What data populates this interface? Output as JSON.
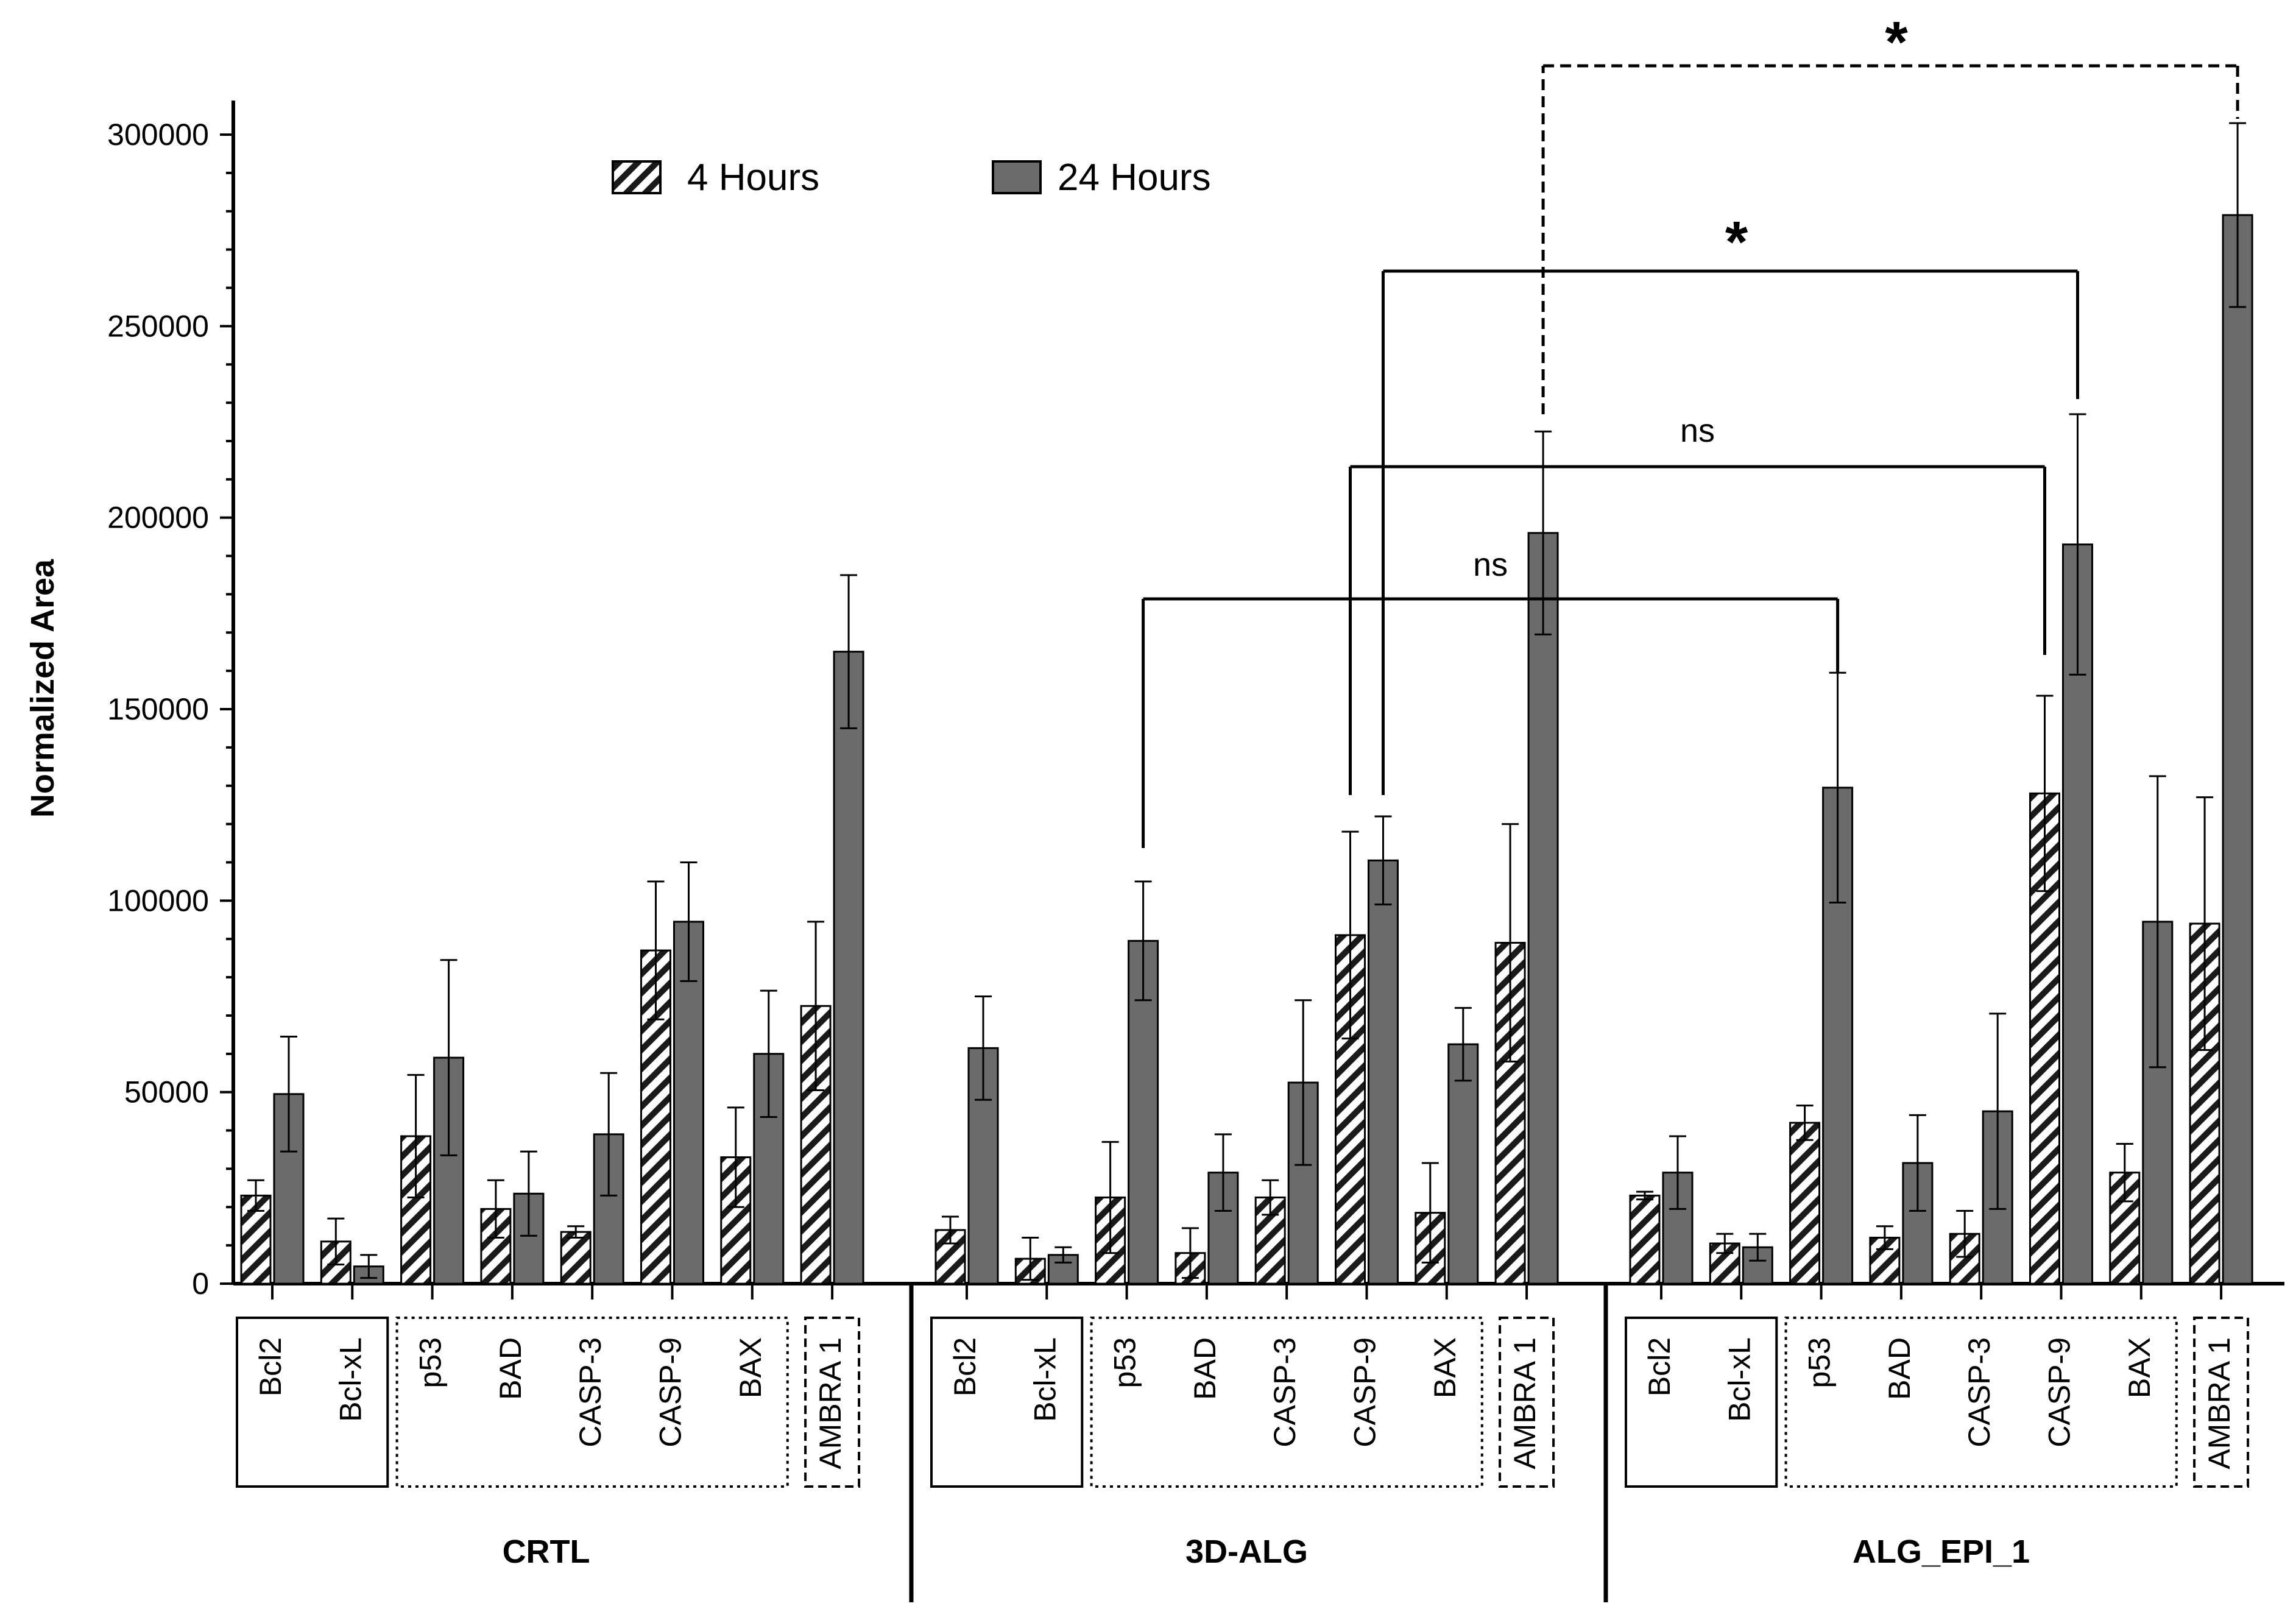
{
  "chart_data": {
    "type": "bar",
    "ylabel": "Normalized Area",
    "ylim": [
      0,
      300000
    ],
    "yticks": [
      0,
      50000,
      100000,
      150000,
      200000,
      250000,
      300000
    ],
    "grid": false,
    "legend_position": "top-center",
    "series": [
      {
        "name": "4 Hours",
        "pattern": "hatched"
      },
      {
        "name": "24 Hours",
        "color": "#6b6b6b"
      }
    ],
    "genes": [
      "Bcl2",
      "Bcl-xL",
      "p53",
      "BAD",
      "CASP-3",
      "CASP-9",
      "BAX",
      "AMBRA 1"
    ],
    "gene_groups": [
      {
        "genes": [
          "Bcl2",
          "Bcl-xL"
        ],
        "border": "solid"
      },
      {
        "genes": [
          "p53",
          "BAD",
          "CASP-3",
          "CASP-9",
          "BAX"
        ],
        "border": "dotted"
      },
      {
        "genes": [
          "AMBRA 1"
        ],
        "border": "dashed"
      }
    ],
    "groups": [
      {
        "name": "CRTL",
        "h4": [
          23000,
          11000,
          38500,
          19500,
          13500,
          87000,
          33000,
          72500
        ],
        "h4_err": [
          4000,
          6000,
          16000,
          7500,
          1500,
          18000,
          13000,
          22000
        ],
        "h24": [
          49500,
          4500,
          59000,
          23500,
          39000,
          94500,
          60000,
          165000
        ],
        "h24_err": [
          15000,
          3000,
          25500,
          11000,
          16000,
          15500,
          16500,
          20000
        ]
      },
      {
        "name": "3D-ALG",
        "h4": [
          14000,
          6500,
          22500,
          8000,
          22500,
          91000,
          18500,
          89000
        ],
        "h4_err": [
          3500,
          5500,
          14500,
          6500,
          4500,
          27000,
          13000,
          31000
        ],
        "h24": [
          61500,
          7500,
          89500,
          29000,
          52500,
          110500,
          62500,
          196000
        ],
        "h24_err": [
          13500,
          2000,
          15500,
          10000,
          21500,
          11500,
          9500,
          26500
        ]
      },
      {
        "name": "ALG_EPI_1",
        "h4": [
          23000,
          10500,
          42000,
          12000,
          13000,
          128000,
          29000,
          94000
        ],
        "h4_err": [
          1000,
          2500,
          4500,
          3000,
          6000,
          25500,
          7500,
          33000
        ],
        "h24": [
          29000,
          9500,
          129500,
          31500,
          45000,
          193000,
          94500,
          279000
        ],
        "h24_err": [
          9500,
          3500,
          30000,
          12500,
          25500,
          34000,
          38000,
          24000
        ]
      }
    ],
    "comparisons": [
      {
        "label": "ns",
        "from": "3D-ALG p53 (24 Hours)",
        "to": "ALG_EPI_1 p53 (24 Hours)",
        "line": "solid"
      },
      {
        "label": "ns",
        "from": "3D-ALG CASP-9 (4 Hours)",
        "to": "ALG_EPI_1 CASP-9 (4 Hours)",
        "line": "solid"
      },
      {
        "label": "*",
        "from": "3D-ALG CASP-9 (24 Hours)",
        "to": "ALG_EPI_1 CASP-9 (24 Hours)",
        "line": "solid"
      },
      {
        "label": "*",
        "from": "3D-ALG AMBRA 1 (24 Hours)",
        "to": "ALG_EPI_1 AMBRA 1 (24 Hours)",
        "line": "dashed"
      }
    ]
  }
}
